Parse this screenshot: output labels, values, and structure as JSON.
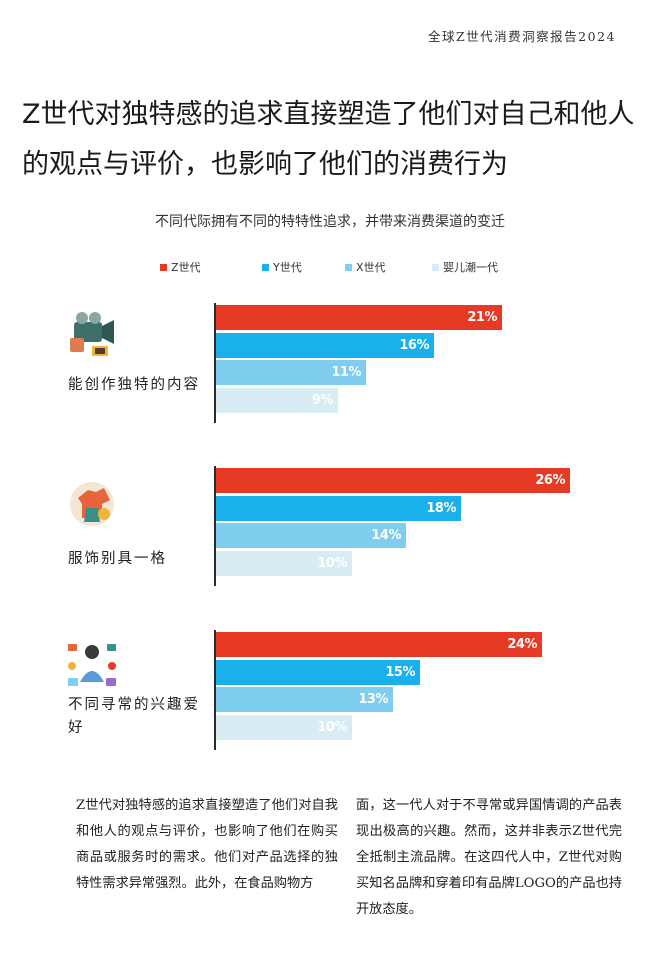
{
  "header": {
    "report_title": "全球Z世代消费洞察报告2024"
  },
  "headline": "Z世代对独特感的追求直接塑造了他们对自己和他人的观点与评价，也影响了他们的消费行为",
  "colors": {
    "z": "#e63a25",
    "y": "#1ab0ec",
    "x": "#7fcdef",
    "boomer": "#d7ecf3"
  },
  "chart_data": {
    "type": "bar",
    "orientation": "horizontal",
    "title": "不同代际拥有不同的特特性追求，并带来消费渠道的变迁",
    "xlim": [
      0,
      30
    ],
    "legend_placement": "top",
    "categories": [
      "能创作独特的内容",
      "服饰别具一格",
      "不同寻常的兴趣爱好"
    ],
    "series": [
      {
        "name": "Z世代",
        "color": "#e63a25",
        "values": [
          21,
          26,
          24
        ],
        "labels": [
          "21%",
          "26%",
          "24%"
        ]
      },
      {
        "name": "Y世代",
        "color": "#1ab0ec",
        "values": [
          16,
          18,
          15
        ],
        "labels": [
          "16%",
          "18%",
          "15%"
        ]
      },
      {
        "name": "X世代",
        "color": "#7fcdef",
        "values": [
          11,
          14,
          13
        ],
        "labels": [
          "11%",
          "14%",
          "13%"
        ]
      },
      {
        "name": "婴儿潮一代",
        "color": "#d7ecf3",
        "values": [
          9,
          10,
          10
        ],
        "labels": [
          "9%",
          "10%",
          "10%"
        ]
      }
    ],
    "icons": [
      "video-camera-icon",
      "clothing-icon",
      "hobbies-icon"
    ]
  },
  "body": {
    "col_left": "Z世代对独特感的追求直接塑造了他们对自我和他人的观点与评价，也影响了他们在购买商品或服务时的需求。他们对产品选择的独特性需求异常强烈。此外，在食品购物方",
    "col_right": "面，这一代人对于不寻常或异国情调的产品表现出极高的兴趣。然而，这并非表示Z世代完全抵制主流品牌。在这四代人中，Z世代对购买知名品牌和穿着印有品牌LOGO的产品也持开放态度。"
  }
}
